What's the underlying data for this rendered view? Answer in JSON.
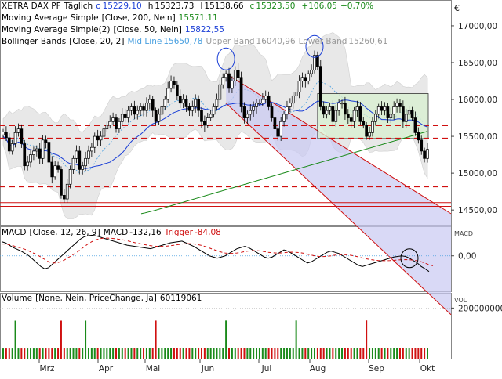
{
  "colors": {
    "candle_up": "#ffffff",
    "candle_down": "#000000",
    "ma200": "#1a8a1a",
    "ma50": "#1a3ed6",
    "band_fill": "#e8e8e8",
    "midline": "#4aa0e0",
    "support_dash": "#d01010",
    "channel": "#d01010",
    "channel_fill": "#c9c9f2",
    "box_fill": "#d8f0d0",
    "volume_up": "#1a8a1a",
    "volume_down": "#d01010"
  },
  "legend": {
    "main": {
      "instrument": "XETRA DAX PF",
      "interval": "Täglich",
      "open_label": "o",
      "open": "15229,10",
      "high_label": "h",
      "high": "15323,73",
      "low_label": "l",
      "low": "15138,66",
      "close_label": "c",
      "close": "15323,50",
      "change": "+106,05",
      "change_pct": "+0,70%"
    },
    "ma200": {
      "name": "Moving Average Simple",
      "params": "[Close, 200, Nein]",
      "value": "15571,11"
    },
    "ma50": {
      "name": "Moving Average Simple(2)",
      "params": "[Close, 50, Nein]",
      "value": "15822,55"
    },
    "bollinger": {
      "name": "Bollinger Bands",
      "params": "[Close, 20, 2]",
      "mid_label": "Mid Line",
      "mid": "15650,78",
      "upper_label": "Upper Band",
      "upper": "16040,96",
      "lower_label": "Lower Band",
      "lower": "15260,61"
    },
    "macd": {
      "name": "MACD",
      "params": "[Close, 12, 26, 9]",
      "value_label": "MACD",
      "value": "-132,16",
      "trigger_label": "Trigger",
      "trigger": "-84,08"
    },
    "volume": {
      "name": "Volume",
      "params": "[None, Nein, PriceChange, Ja]",
      "value": "60119061"
    }
  },
  "axes": {
    "top_marker": "€",
    "price_ticks": [
      "17000,00",
      "16500,00",
      "16000,00",
      "15500,00",
      "15000,00",
      "14500,00"
    ],
    "macd_label": "MACD",
    "macd_ticks": [
      "0,00"
    ],
    "volume_label": "VOL",
    "volume_ticks": [
      "200000000"
    ],
    "months": [
      "Mrz",
      "Apr",
      "Mai",
      "Jun",
      "Jul",
      "Aug",
      "Sep",
      "Okt"
    ]
  },
  "chart_data": {
    "type": "candlestick",
    "price_ylim": [
      14300,
      17350
    ],
    "support_levels": [
      15650,
      15470,
      14820
    ],
    "support_lines_solid": [
      14600,
      14550
    ],
    "closes": [
      15560,
      15480,
      15300,
      15400,
      15550,
      15600,
      15400,
      15100,
      15150,
      15250,
      15300,
      15330,
      15200,
      15450,
      15420,
      15150,
      14950,
      15100,
      15050,
      14700,
      14650,
      14850,
      15050,
      15200,
      15300,
      15050,
      15100,
      15200,
      15300,
      15350,
      15500,
      15450,
      15500,
      15600,
      15650,
      15700,
      15750,
      15600,
      15700,
      15800,
      15750,
      15850,
      15900,
      15800,
      15850,
      15900,
      15850,
      15950,
      16000,
      15850,
      15700,
      15800,
      15900,
      16000,
      16150,
      16250,
      16200,
      16050,
      15950,
      16000,
      15900,
      15850,
      15900,
      16000,
      15850,
      15700,
      15650,
      15750,
      15800,
      15900,
      16000,
      16200,
      16300,
      16350,
      16150,
      16250,
      16400,
      16300,
      15900,
      15750,
      15800,
      15850,
      15900,
      15950,
      15950,
      16000,
      16050,
      15900,
      15750,
      15600,
      15500,
      15700,
      15800,
      15900,
      15950,
      16050,
      16100,
      16250,
      16300,
      16250,
      16350,
      16400,
      16600,
      16450,
      15900,
      15800,
      15850,
      15900,
      15700,
      15850,
      15950,
      15950,
      15800,
      15750,
      15700,
      15850,
      15900,
      15700,
      15650,
      15500,
      15550,
      15700,
      15800,
      15900,
      15850,
      15900,
      15750,
      15800,
      15900,
      15950,
      15900,
      15700,
      15800,
      15850,
      15750,
      15550,
      15450,
      15300,
      15200,
      15323.5
    ],
    "ma200": [
      14450,
      14455,
      14460,
      14466,
      14472,
      14478,
      14484,
      14490,
      14497,
      14504,
      14511,
      14518,
      14525,
      14532,
      14539,
      14546,
      14553,
      14560,
      14567,
      14574,
      14581,
      14588,
      14595,
      14602,
      14609,
      14616,
      14623,
      14630,
      14637,
      14644,
      14651,
      14658,
      14665,
      14672,
      14679,
      14686,
      14693,
      14700,
      14707,
      14714,
      14721,
      14728,
      14735,
      14742,
      14749,
      14756,
      14763,
      14770,
      14777,
      14784,
      14791,
      14798,
      14805,
      14812,
      14819,
      14826,
      14833,
      14840,
      14847,
      14854,
      14861,
      14868,
      14875,
      14882,
      14889,
      14896,
      14903,
      14910,
      14917,
      14924,
      14931,
      14938,
      14945,
      14952,
      14959,
      14966,
      14973,
      14980,
      14987,
      14994,
      15001,
      15008,
      15015,
      15022,
      15029,
      15036,
      15043,
      15050,
      15057,
      15064,
      15071,
      15078,
      15085,
      15092,
      15099,
      15106,
      15113,
      15120,
      15127,
      15134,
      15141,
      15148,
      15155,
      15162,
      15169,
      15176,
      15183,
      15190,
      15197,
      15204,
      15211,
      15218,
      15225,
      15232,
      15239,
      15246,
      15253,
      15260,
      15267,
      15274,
      15281,
      15288,
      15295,
      15302,
      15309,
      15316,
      15323,
      15330,
      15337,
      15344,
      15351,
      15358,
      15365,
      15372,
      15379,
      15386,
      15393,
      15400,
      15407,
      15414,
      15421,
      15428,
      15435,
      15442,
      15449,
      15456,
      15463,
      15470,
      15477,
      15484,
      15491,
      15498,
      15505,
      15512,
      15519,
      15526,
      15533,
      15540,
      15547,
      15554,
      15561,
      15571
    ],
    "macd_ylim": [
      -300,
      250
    ],
    "macd": [
      120,
      110,
      90,
      70,
      55,
      40,
      20,
      0,
      -30,
      -60,
      -90,
      -110,
      -100,
      -70,
      -40,
      -10,
      20,
      50,
      80,
      110,
      140,
      160,
      170,
      175,
      170,
      160,
      150,
      140,
      130,
      120,
      110,
      100,
      90,
      85,
      80,
      75,
      70,
      65,
      60,
      70,
      80,
      90,
      100,
      110,
      115,
      120,
      125,
      110,
      95,
      80,
      60,
      40,
      20,
      0,
      -10,
      -20,
      -10,
      0,
      20,
      40,
      60,
      70,
      80,
      70,
      50,
      30,
      10,
      -10,
      -20,
      -10,
      10,
      30,
      50,
      40,
      20,
      0,
      -20,
      -40,
      -60,
      -50,
      -30,
      -10,
      10,
      30,
      40,
      30,
      20,
      0,
      -20,
      -40,
      -60,
      -80,
      -90,
      -80,
      -70,
      -60,
      -50,
      -40,
      -30,
      -20,
      -10,
      -5,
      0,
      -5,
      -20,
      -40,
      -60,
      -90,
      -110,
      -132
    ],
    "trigger": [
      100,
      100,
      95,
      85,
      75,
      65,
      55,
      40,
      25,
      10,
      -10,
      -30,
      -50,
      -60,
      -60,
      -50,
      -35,
      -15,
      5,
      25,
      50,
      75,
      100,
      120,
      135,
      145,
      150,
      150,
      148,
      145,
      140,
      135,
      128,
      120,
      112,
      105,
      98,
      92,
      86,
      82,
      80,
      80,
      82,
      86,
      90,
      95,
      100,
      103,
      103,
      101,
      96,
      88,
      78,
      66,
      54,
      42,
      32,
      24,
      20,
      21,
      24,
      29,
      36,
      41,
      44,
      44,
      41,
      36,
      30,
      26,
      24,
      24,
      27,
      30,
      31,
      30,
      27,
      22,
      14,
      6,
      -1,
      -5,
      -6,
      -4,
      0,
      6,
      10,
      11,
      9,
      5,
      -1,
      -9,
      -18,
      -25,
      -31,
      -36,
      -39,
      -41,
      -41,
      -40,
      -38,
      -35,
      -33,
      -32,
      -33,
      -36,
      -42,
      -50,
      -62,
      -75,
      -84
    ]
  }
}
